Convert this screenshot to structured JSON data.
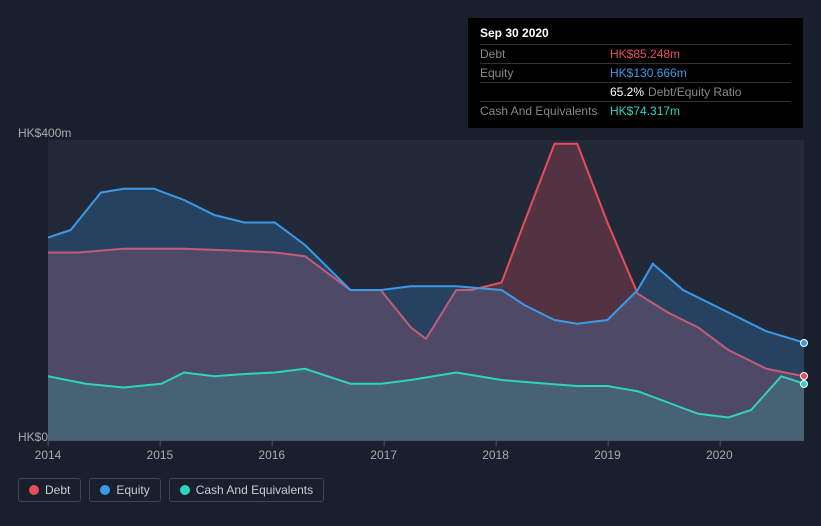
{
  "chart": {
    "type": "area",
    "background_color": "#1a1f2e",
    "plot_background": "#222a3a",
    "axis_color": "#4a5568",
    "text_color": "#aaaaaa",
    "ylim": [
      0,
      400
    ],
    "y_unit_prefix": "HK$",
    "y_unit_suffix": "m",
    "y_ticks": [
      0,
      400
    ],
    "y_tick_labels": [
      "HK$0",
      "HK$400m"
    ],
    "x_categories": [
      "2014",
      "2015",
      "2016",
      "2017",
      "2018",
      "2019",
      "2020"
    ],
    "x_positions": [
      0,
      0.148,
      0.296,
      0.444,
      0.592,
      0.74,
      0.888
    ],
    "series": [
      {
        "name": "Debt",
        "color": "#e74c5c",
        "fill_opacity": 0.25,
        "data_x": [
          0,
          0.04,
          0.1,
          0.18,
          0.26,
          0.3,
          0.34,
          0.4,
          0.44,
          0.48,
          0.5,
          0.54,
          0.56,
          0.6,
          0.63,
          0.67,
          0.7,
          0.74,
          0.78,
          0.82,
          0.86,
          0.9,
          0.95,
          1.0
        ],
        "data_y": [
          250,
          250,
          255,
          255,
          252,
          250,
          245,
          200,
          200,
          150,
          135,
          200,
          200,
          210,
          290,
          395,
          395,
          290,
          195,
          170,
          150,
          120,
          95,
          85
        ]
      },
      {
        "name": "Equity",
        "color": "#3b9ae8",
        "fill_opacity": 0.22,
        "data_x": [
          0,
          0.03,
          0.07,
          0.1,
          0.14,
          0.18,
          0.22,
          0.26,
          0.3,
          0.34,
          0.4,
          0.44,
          0.48,
          0.54,
          0.6,
          0.63,
          0.67,
          0.7,
          0.74,
          0.78,
          0.8,
          0.84,
          0.9,
          0.95,
          1.0
        ],
        "data_y": [
          270,
          280,
          330,
          335,
          335,
          320,
          300,
          290,
          290,
          260,
          200,
          200,
          205,
          205,
          200,
          180,
          160,
          155,
          160,
          200,
          235,
          200,
          170,
          145,
          130
        ]
      },
      {
        "name": "Cash And Equivalents",
        "color": "#2dd4bf",
        "fill_opacity": 0.18,
        "data_x": [
          0,
          0.05,
          0.1,
          0.15,
          0.18,
          0.22,
          0.26,
          0.3,
          0.34,
          0.4,
          0.44,
          0.48,
          0.54,
          0.6,
          0.66,
          0.7,
          0.74,
          0.78,
          0.82,
          0.86,
          0.9,
          0.93,
          0.97,
          1.0
        ],
        "data_y": [
          85,
          75,
          70,
          75,
          90,
          85,
          88,
          90,
          95,
          75,
          75,
          80,
          90,
          80,
          75,
          72,
          72,
          65,
          50,
          35,
          30,
          40,
          85,
          75
        ]
      }
    ],
    "edge_markers": [
      {
        "color": "#3b9ae8",
        "y": 130
      },
      {
        "color": "#e74c5c",
        "y": 85
      },
      {
        "color": "#2dd4bf",
        "y": 75
      }
    ]
  },
  "tooltip": {
    "title": "Sep 30 2020",
    "rows": [
      {
        "label": "Debt",
        "value": "HK$85.248m",
        "class": "debt"
      },
      {
        "label": "Equity",
        "value": "HK$130.666m",
        "class": "equity"
      },
      {
        "label": "",
        "value": "65.2%",
        "suffix": "Debt/Equity Ratio",
        "class": "ratio"
      },
      {
        "label": "Cash And Equivalents",
        "value": "HK$74.317m",
        "class": "cash"
      }
    ]
  },
  "legend": {
    "items": [
      {
        "label": "Debt",
        "color": "#e74c5c"
      },
      {
        "label": "Equity",
        "color": "#3b9ae8"
      },
      {
        "label": "Cash And Equivalents",
        "color": "#2dd4bf"
      }
    ]
  }
}
